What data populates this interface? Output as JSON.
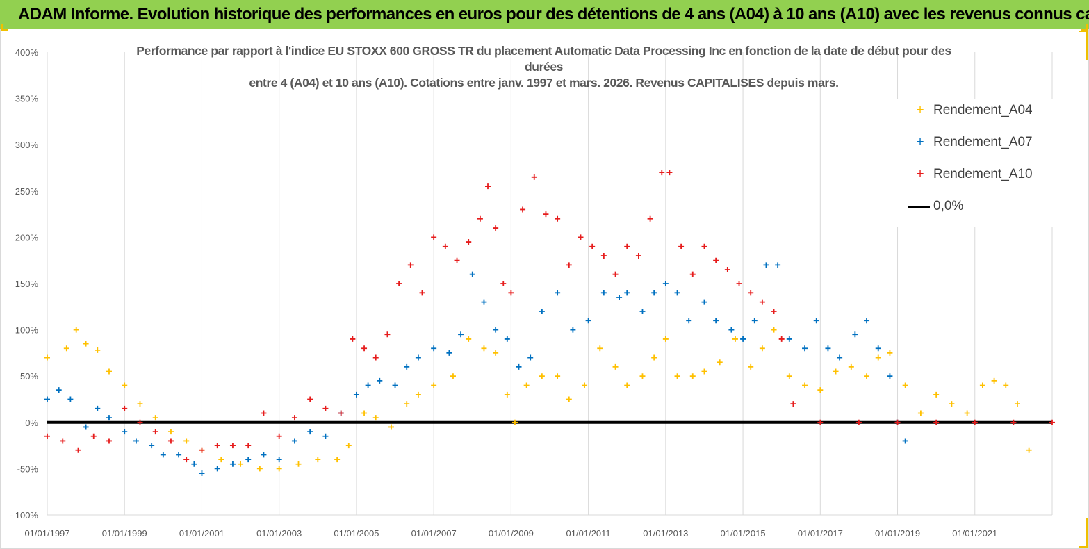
{
  "banner": {
    "title": "ADAM Informe. Evolution historique des performances en euros pour des détentions de 4 ans (A04) à 10 ans (A10) avec les revenus connus capitalisés"
  },
  "chart_data": {
    "type": "scatter",
    "title_lines": [
      "Performance par rapport à l'indice EU STOXX 600 GROSS TR  du placement Automatic Data Processing Inc en fonction de la date de début pour des",
      "durées",
      "entre 4 (A04) et 10 ans (A10).  Cotations entre janv. 1997 et mars. 2026. Revenus CAPITALISES depuis mars."
    ],
    "xlabel": "",
    "ylabel": "",
    "xlim": [
      1997.0,
      2023.0
    ],
    "ylim": [
      -100,
      400
    ],
    "y_tick_values": [
      -100,
      -50,
      0,
      50,
      100,
      150,
      200,
      250,
      300,
      350,
      400
    ],
    "y_tick_labels": [
      "- 100%",
      "-50%",
      "0%",
      "50%",
      "100%",
      "150%",
      "200%",
      "250%",
      "300%",
      "350%",
      "400%"
    ],
    "x_tick_values": [
      1997,
      1999,
      2001,
      2003,
      2005,
      2007,
      2009,
      2011,
      2013,
      2015,
      2017,
      2019,
      2021
    ],
    "x_tick_labels": [
      "01/01/1997",
      "01/01/1999",
      "01/01/2001",
      "01/01/2003",
      "01/01/2005",
      "01/01/2007",
      "01/01/2009",
      "01/01/2011",
      "01/01/2013",
      "01/01/2015",
      "01/01/2017",
      "01/01/2019",
      "01/01/2021"
    ],
    "grid": "vertical",
    "legend_position": "top-right",
    "reference_line": {
      "name": "0,0%",
      "value": 0,
      "color": "#000000"
    },
    "series": [
      {
        "name": "Rendement_A04",
        "color": "#ffc000",
        "x": [
          1997.0,
          1997.5,
          1997.75,
          1998.0,
          1998.3,
          1998.6,
          1999.0,
          1999.4,
          1999.8,
          2000.2,
          2000.6,
          2001.0,
          2001.5,
          2002.0,
          2002.5,
          2003.0,
          2003.5,
          2004.0,
          2004.5,
          2004.8,
          2005.2,
          2005.5,
          2005.9,
          2006.3,
          2006.6,
          2007.0,
          2007.5,
          2007.9,
          2008.3,
          2008.6,
          2008.9,
          2009.1,
          2009.4,
          2009.8,
          2010.2,
          2010.5,
          2010.9,
          2011.3,
          2011.7,
          2012.0,
          2012.4,
          2012.7,
          2013.0,
          2013.3,
          2013.7,
          2014.0,
          2014.4,
          2014.8,
          2015.2,
          2015.5,
          2015.8,
          2016.2,
          2016.6,
          2017.0,
          2017.4,
          2017.8,
          2018.2,
          2018.5,
          2018.8,
          2019.2,
          2019.6,
          2020.0,
          2020.4,
          2020.8,
          2021.2,
          2021.5,
          2021.8,
          2022.1,
          2022.4
        ],
        "y": [
          70,
          80,
          100,
          85,
          78,
          55,
          40,
          20,
          5,
          -10,
          -20,
          -30,
          -40,
          -45,
          -50,
          -50,
          -45,
          -40,
          -40,
          -25,
          10,
          5,
          -5,
          20,
          30,
          40,
          50,
          90,
          80,
          75,
          30,
          0,
          40,
          50,
          50,
          25,
          40,
          80,
          60,
          40,
          50,
          70,
          90,
          50,
          50,
          55,
          65,
          90,
          60,
          80,
          100,
          50,
          40,
          35,
          55,
          60,
          50,
          70,
          75,
          40,
          10,
          30,
          20,
          10,
          40,
          45,
          40,
          20,
          -30
        ]
      },
      {
        "name": "Rendement_A07",
        "color": "#0070c0",
        "x": [
          1997.0,
          1997.3,
          1997.6,
          1998.0,
          1998.3,
          1998.6,
          1999.0,
          1999.3,
          1999.7,
          2000.0,
          2000.4,
          2000.8,
          2001.0,
          2001.4,
          2001.8,
          2002.2,
          2002.6,
          2003.0,
          2003.4,
          2003.8,
          2004.2,
          2004.6,
          2005.0,
          2005.3,
          2005.6,
          2006.0,
          2006.3,
          2006.6,
          2007.0,
          2007.4,
          2007.7,
          2008.0,
          2008.3,
          2008.6,
          2008.9,
          2009.2,
          2009.5,
          2009.8,
          2010.2,
          2010.6,
          2011.0,
          2011.4,
          2011.8,
          2012.0,
          2012.4,
          2012.7,
          2013.0,
          2013.3,
          2013.6,
          2014.0,
          2014.3,
          2014.7,
          2015.0,
          2015.3,
          2015.6,
          2015.9,
          2016.2,
          2016.6,
          2016.9,
          2017.2,
          2017.5,
          2017.9,
          2018.2,
          2018.5,
          2018.8,
          2019.0,
          2019.2
        ],
        "y": [
          25,
          35,
          25,
          -5,
          15,
          5,
          -10,
          -20,
          -25,
          -35,
          -35,
          -45,
          -55,
          -50,
          -45,
          -40,
          -35,
          -40,
          -20,
          -10,
          -15,
          10,
          30,
          40,
          45,
          40,
          60,
          70,
          80,
          75,
          95,
          160,
          130,
          100,
          90,
          60,
          70,
          120,
          140,
          100,
          110,
          140,
          135,
          140,
          120,
          140,
          150,
          140,
          110,
          130,
          110,
          100,
          90,
          110,
          170,
          170,
          90,
          80,
          110,
          80,
          70,
          95,
          110,
          80,
          50,
          0,
          -20
        ]
      },
      {
        "name": "Rendement_A10",
        "color": "#e61c1c",
        "x": [
          1997.0,
          1997.4,
          1997.8,
          1998.2,
          1998.6,
          1999.0,
          1999.4,
          1999.8,
          2000.2,
          2000.6,
          2001.0,
          2001.4,
          2001.8,
          2002.2,
          2002.6,
          2003.0,
          2003.4,
          2003.8,
          2004.2,
          2004.6,
          2004.9,
          2005.2,
          2005.5,
          2005.8,
          2006.1,
          2006.4,
          2006.7,
          2007.0,
          2007.3,
          2007.6,
          2007.9,
          2008.2,
          2008.4,
          2008.6,
          2008.8,
          2009.0,
          2009.3,
          2009.6,
          2009.9,
          2010.2,
          2010.5,
          2010.8,
          2011.1,
          2011.4,
          2011.7,
          2012.0,
          2012.3,
          2012.6,
          2012.9,
          2013.1,
          2013.4,
          2013.7,
          2014.0,
          2014.3,
          2014.6,
          2014.9,
          2015.2,
          2015.5,
          2015.8,
          2016.0,
          2016.3,
          2017.0,
          2018.0,
          2019.0,
          2020.0,
          2021.0,
          2022.0,
          2023.0
        ],
        "y": [
          -15,
          -20,
          -30,
          -15,
          -20,
          15,
          0,
          -10,
          -20,
          -40,
          -30,
          -25,
          -25,
          -25,
          10,
          -15,
          5,
          25,
          15,
          10,
          90,
          80,
          70,
          95,
          150,
          170,
          140,
          200,
          190,
          175,
          195,
          220,
          255,
          210,
          150,
          140,
          230,
          265,
          225,
          220,
          170,
          200,
          190,
          180,
          160,
          190,
          180,
          220,
          270,
          270,
          190,
          160,
          190,
          175,
          165,
          150,
          140,
          130,
          120,
          90,
          20,
          0,
          0,
          0,
          0,
          0,
          0,
          0
        ]
      }
    ]
  }
}
